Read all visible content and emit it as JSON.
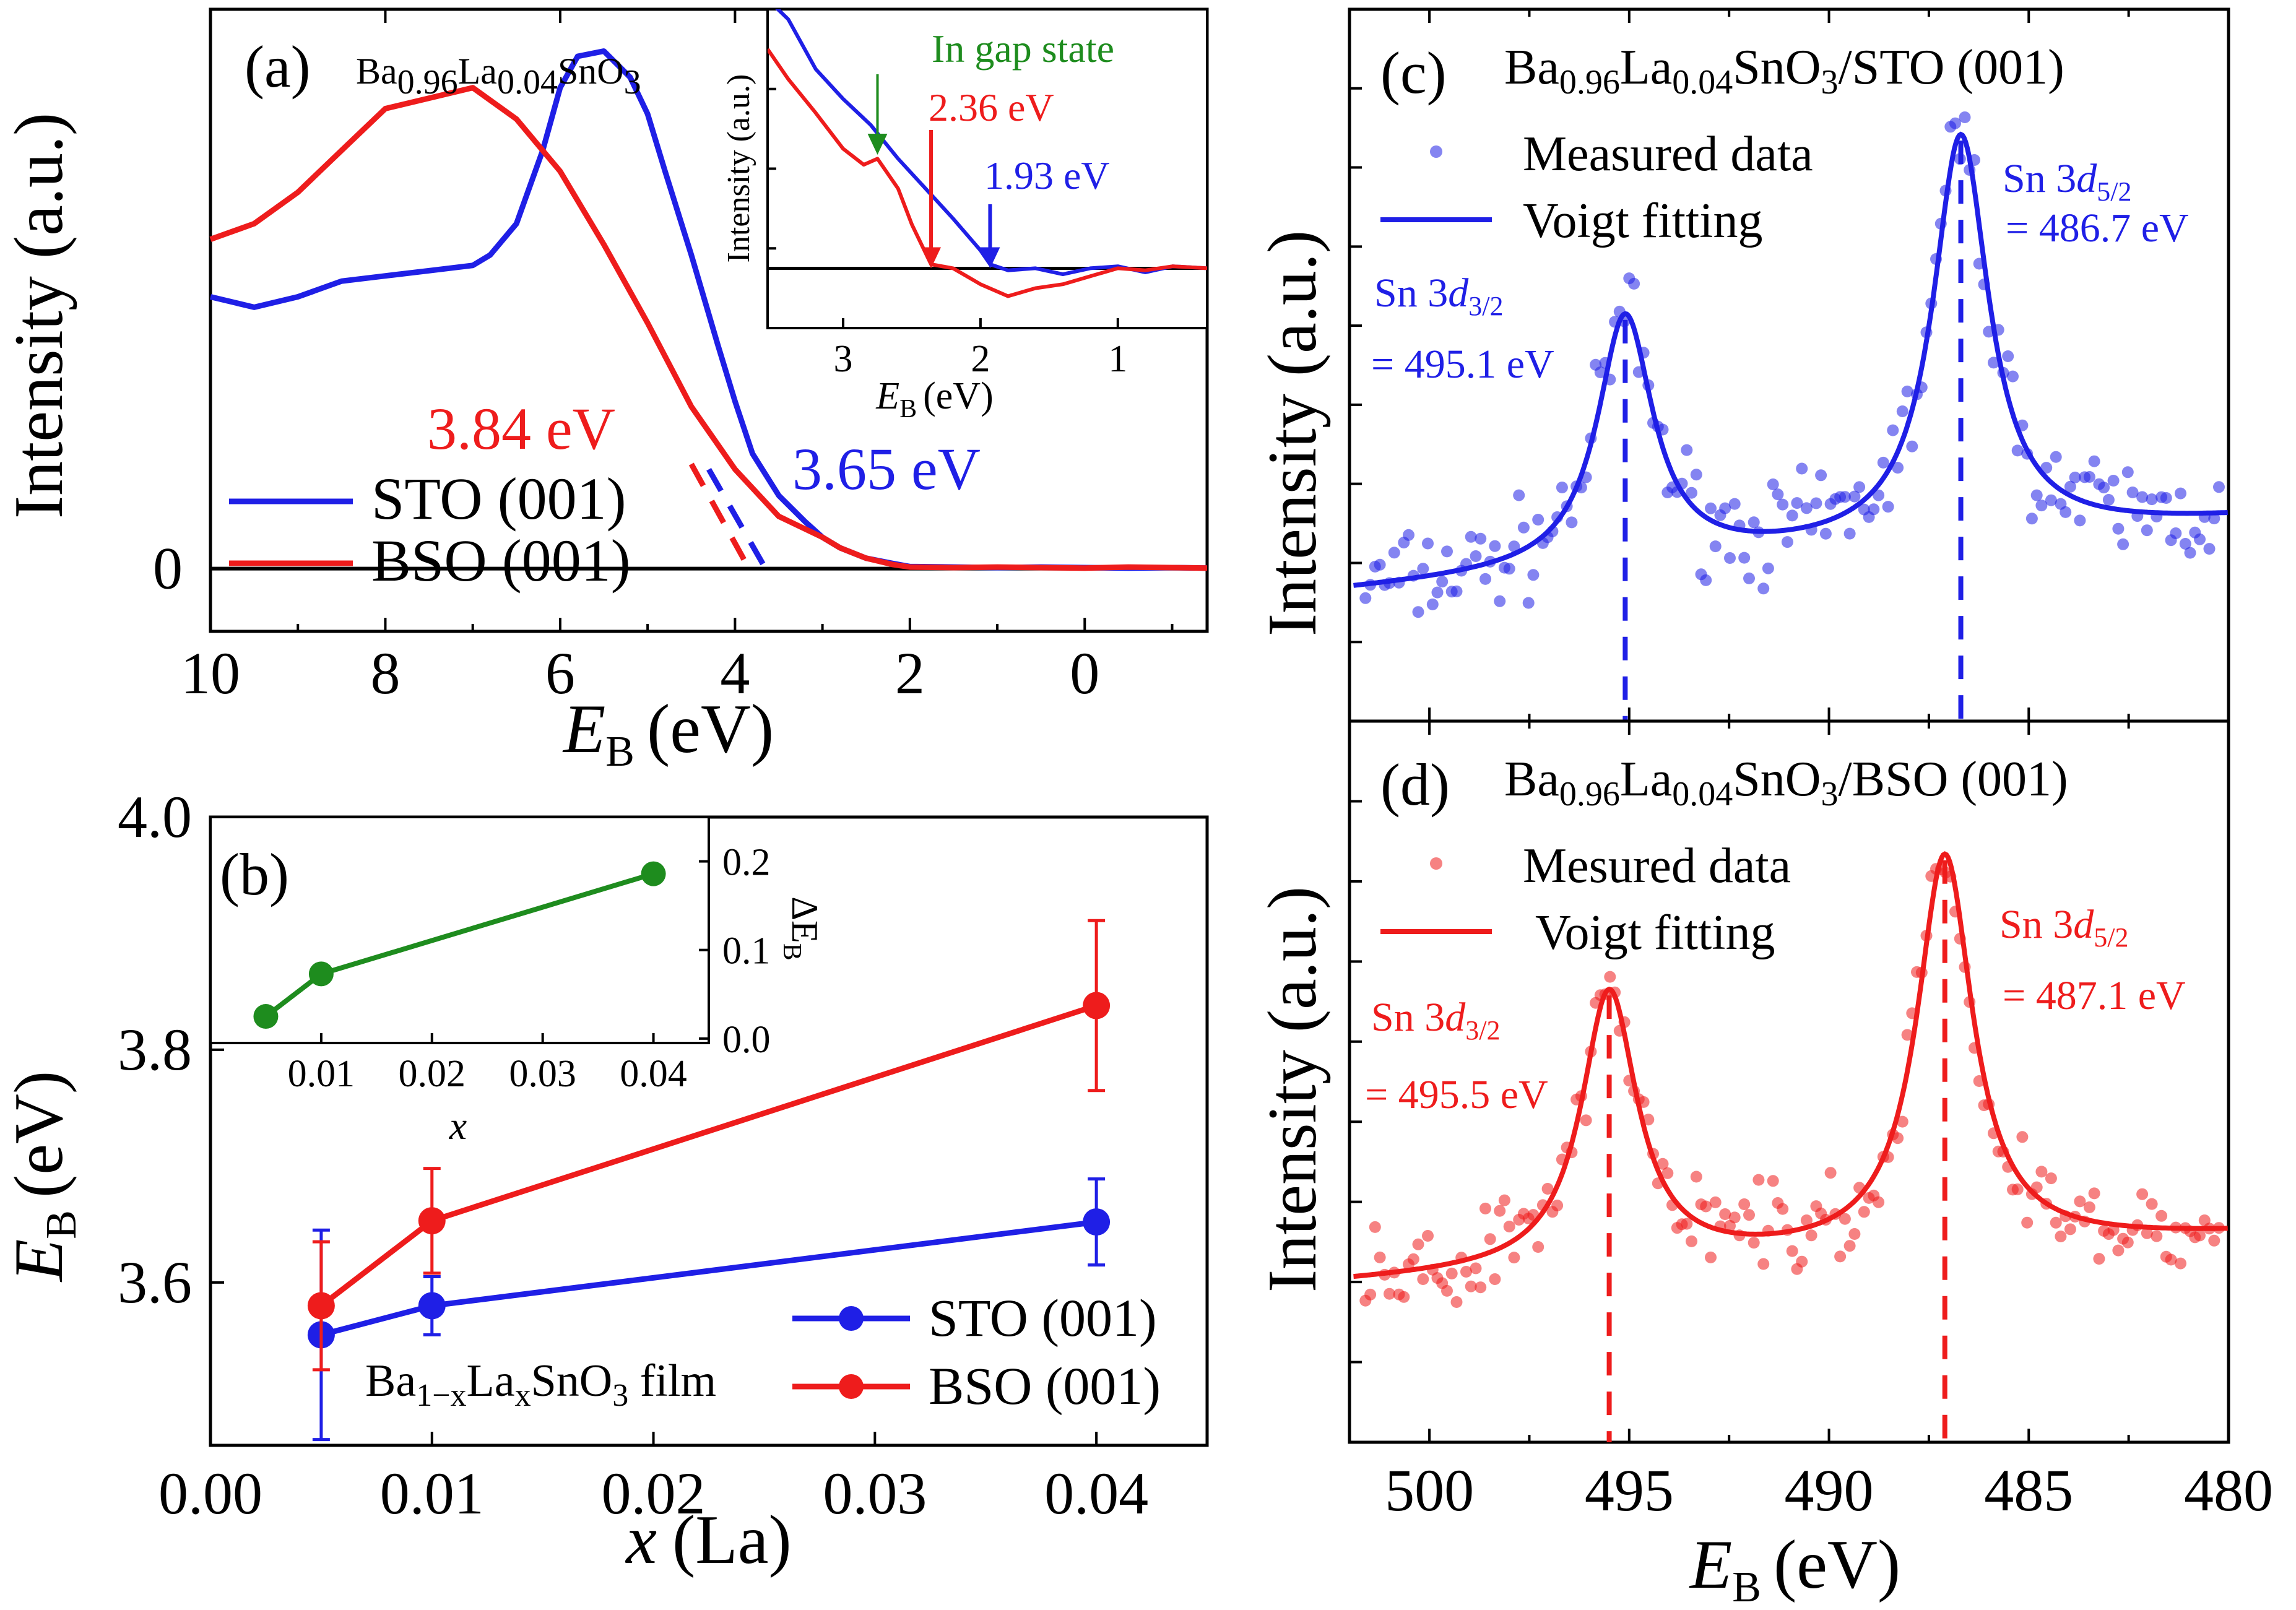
{
  "chart_data": [
    {
      "id": "a",
      "type": "line",
      "panel_label": "(a)",
      "title": "Ba0.96La0.04SnO3",
      "formula": [
        {
          "t": "Ba",
          "s": "n"
        },
        {
          "t": "0.96",
          "s": "sub"
        },
        {
          "t": "La",
          "s": "n"
        },
        {
          "t": "0.04",
          "s": "sub"
        },
        {
          "t": "SnO",
          "s": "n"
        },
        {
          "t": "3",
          "s": "sub"
        }
      ],
      "xlabel": "E",
      "xlabel_sub": "B",
      "xlabel_unit": "(eV)",
      "ylabel": "Intensity (a.u.)",
      "xlim": [
        10,
        -1.4
      ],
      "ylim": [
        -0.12,
        1.07
      ],
      "xticks": [
        10,
        8,
        6,
        4,
        2,
        0
      ],
      "xtick_labels": [
        "10",
        "8",
        "6",
        "4",
        "2",
        "0"
      ],
      "yticks": [
        0
      ],
      "ytick_labels": [
        "0"
      ],
      "legend": [
        "STO (001)",
        "BSO (001)"
      ],
      "series": [
        {
          "name": "STO (001)",
          "color": "#1f1fe6",
          "x": [
            10,
            9.5,
            9,
            8.5,
            8,
            7.5,
            7,
            6.8,
            6.5,
            6.2,
            6,
            5.8,
            5.5,
            5.2,
            5,
            4.8,
            4.5,
            4.2,
            4,
            3.8,
            3.5,
            3.2,
            3,
            2.8,
            2.5,
            2.2,
            2,
            1.5,
            1,
            0.5,
            0,
            -0.5,
            -1,
            -1.4
          ],
          "y": [
            0.52,
            0.5,
            0.52,
            0.55,
            0.56,
            0.57,
            0.58,
            0.6,
            0.66,
            0.8,
            0.92,
            0.98,
            0.99,
            0.94,
            0.87,
            0.76,
            0.6,
            0.43,
            0.32,
            0.22,
            0.14,
            0.09,
            0.06,
            0.04,
            0.02,
            0.01,
            0.004,
            0.003,
            0.002,
            0.003,
            0.002,
            0.001,
            0.002,
            0.001
          ]
        },
        {
          "name": "BSO (001)",
          "color": "#ee1c1c",
          "x": [
            10,
            9.5,
            9,
            8.5,
            8,
            7.5,
            7,
            6.5,
            6,
            5.5,
            5,
            4.5,
            4,
            3.5,
            3,
            2.8,
            2.5,
            2.2,
            2,
            1.5,
            1,
            0.5,
            0,
            -0.5,
            -1,
            -1.4
          ],
          "y": [
            0.63,
            0.66,
            0.72,
            0.8,
            0.88,
            0.9,
            0.92,
            0.86,
            0.76,
            0.62,
            0.47,
            0.31,
            0.19,
            0.1,
            0.06,
            0.04,
            0.02,
            0.008,
            0.003,
            0.002,
            0.003,
            0.002,
            0.001,
            0.003,
            0.002,
            0.001
          ]
        }
      ],
      "fit_lines": [
        {
          "color": "#1f1fe6",
          "x": [
            4.3,
            3.65
          ],
          "y": [
            0.19,
            0.0
          ]
        },
        {
          "color": "#ee1c1c",
          "x": [
            4.5,
            3.84
          ],
          "y": [
            0.2,
            0.0
          ]
        }
      ],
      "annotations": [
        {
          "text": "3.84 eV",
          "color": "#ee1c1c"
        },
        {
          "text": "3.65 eV",
          "color": "#1f1fe6"
        }
      ],
      "inset": {
        "type": "line",
        "xlabel": "E",
        "xlabel_sub": "B",
        "xlabel_unit": "(eV)",
        "ylabel": "Intensity (a.u.)",
        "xlim": [
          3.55,
          0.35
        ],
        "ylim": [
          -0.3,
          1.3
        ],
        "xticks": [
          3,
          2,
          1
        ],
        "xtick_labels": [
          "3",
          "2",
          "1"
        ],
        "series": [
          {
            "name": "STO (001)",
            "color": "#1f1fe6",
            "x": [
              3.55,
              3.4,
              3.2,
              3.0,
              2.8,
              2.6,
              2.4,
              2.2,
              2.0,
              1.93,
              1.8,
              1.6,
              1.4,
              1.2,
              1.0,
              0.8,
              0.6,
              0.35
            ],
            "y": [
              1.35,
              1.25,
              1.0,
              0.85,
              0.72,
              0.55,
              0.4,
              0.25,
              0.09,
              0.02,
              -0.01,
              0.0,
              -0.03,
              0.0,
              0.01,
              -0.02,
              0.01,
              0.0
            ]
          },
          {
            "name": "BSO (001)",
            "color": "#ee1c1c",
            "x": [
              3.55,
              3.4,
              3.2,
              3.0,
              2.85,
              2.75,
              2.6,
              2.5,
              2.36,
              2.2,
              2.0,
              1.8,
              1.6,
              1.4,
              1.2,
              1.0,
              0.8,
              0.6,
              0.35
            ],
            "y": [
              1.1,
              0.95,
              0.78,
              0.6,
              0.52,
              0.55,
              0.4,
              0.22,
              0.02,
              0.0,
              -0.08,
              -0.14,
              -0.1,
              -0.08,
              -0.04,
              0.0,
              -0.01,
              0.01,
              0.0
            ]
          }
        ],
        "annotations": [
          {
            "text": "In gap state",
            "color": "#1e8c1e"
          },
          {
            "text": "2.36 eV",
            "color": "#ee1c1c"
          },
          {
            "text": "1.93 eV",
            "color": "#1f1fe6"
          }
        ]
      }
    },
    {
      "id": "b",
      "type": "line",
      "panel_label": "(b)",
      "xlabel": "x",
      "xlabel_unit": "(La)",
      "ylabel": "E",
      "ylabel_sub": "B",
      "ylabel_unit": "(eV)",
      "xlim": [
        0.0,
        0.045
      ],
      "ylim": [
        3.46,
        4.0
      ],
      "xticks": [
        0.0,
        0.01,
        0.02,
        0.03,
        0.04
      ],
      "xtick_labels": [
        "0.00",
        "0.01",
        "0.02",
        "0.03",
        "0.04"
      ],
      "yticks": [
        3.6,
        3.8,
        4.0
      ],
      "ytick_labels": [
        "3.6",
        "3.8",
        "4.0"
      ],
      "legend": [
        "STO (001)",
        "BSO (001)"
      ],
      "legend_title": "Ba1−xLaxSnO3 film",
      "legend_formula": [
        {
          "t": "Ba",
          "s": "n"
        },
        {
          "t": "1−x",
          "s": "sub"
        },
        {
          "t": "La",
          "s": "n"
        },
        {
          "t": "x",
          "s": "sub"
        },
        {
          "t": "SnO",
          "s": "n"
        },
        {
          "t": "3",
          "s": "sub"
        },
        {
          "t": " film",
          "s": "n"
        }
      ],
      "series": [
        {
          "name": "STO (001)",
          "color": "#1f1fe6",
          "x": [
            0.005,
            0.01,
            0.04
          ],
          "y": [
            3.555,
            3.58,
            3.652
          ],
          "err": [
            0.09,
            0.025,
            0.037
          ]
        },
        {
          "name": "BSO (001)",
          "color": "#ee1c1c",
          "x": [
            0.005,
            0.01,
            0.04
          ],
          "y": [
            3.58,
            3.653,
            3.838
          ],
          "err": [
            0.055,
            0.045,
            0.073
          ]
        }
      ],
      "inset": {
        "type": "line",
        "xlabel": "x",
        "ylabel": "ΔE",
        "ylabel_sub": "B",
        "xlim": [
          0.0,
          0.045
        ],
        "ylim": [
          -0.005,
          0.25
        ],
        "xticks": [
          0.01,
          0.02,
          0.03,
          0.04
        ],
        "xtick_labels": [
          "0.01",
          "0.02",
          "0.03",
          "0.04"
        ],
        "yticks": [
          0.0,
          0.1,
          0.2
        ],
        "ytick_labels": [
          "0.0",
          "0.1",
          "0.2"
        ],
        "series": [
          {
            "name": "ΔE_B",
            "color": "#1e8c1e",
            "x": [
              0.005,
              0.01,
              0.04
            ],
            "y": [
              0.025,
              0.073,
              0.186
            ]
          }
        ]
      }
    },
    {
      "id": "c",
      "type": "scatter",
      "panel_label": "(c)",
      "title": "Ba0.96La0.04SnO3/STO (001)",
      "formula": [
        {
          "t": "Ba",
          "s": "n"
        },
        {
          "t": "0.96",
          "s": "sub"
        },
        {
          "t": "La",
          "s": "n"
        },
        {
          "t": "0.04",
          "s": "sub"
        },
        {
          "t": "SnO",
          "s": "n"
        },
        {
          "t": "3",
          "s": "sub"
        },
        {
          "t": "/STO (001)",
          "s": "n"
        }
      ],
      "ylabel": "Intensity (a.u.)",
      "xlim": [
        502,
        480
      ],
      "ylim": [
        -0.38,
        1.38
      ],
      "legend": [
        "Measured data",
        "Voigt fitting"
      ],
      "color": "#1f1fe6",
      "peaks": [
        {
          "name": "Sn 3d3/2",
          "center": 495.1,
          "height": 0.62,
          "width": 0.85
        },
        {
          "name": "Sn 3d5/2",
          "center": 486.7,
          "height": 1.0,
          "width": 0.85
        }
      ],
      "baseline": [
        0.03,
        -0.008
      ],
      "noise": 0.12,
      "seed": 7,
      "peak_labels": [
        {
          "main": "Sn 3",
          "ital": "d",
          "sub": "3/2",
          "value": "= 495.1 eV"
        },
        {
          "main": "Sn 3",
          "ital": "d",
          "sub": "5/2",
          "value": "= 486.7 eV"
        }
      ]
    },
    {
      "id": "d",
      "type": "scatter",
      "panel_label": "(d)",
      "title": "Ba0.96La0.04SnO3/BSO (001)",
      "formula": [
        {
          "t": "Ba",
          "s": "n"
        },
        {
          "t": "0.96",
          "s": "sub"
        },
        {
          "t": "La",
          "s": "n"
        },
        {
          "t": "0.04",
          "s": "sub"
        },
        {
          "t": "SnO",
          "s": "n"
        },
        {
          "t": "3",
          "s": "sub"
        },
        {
          "t": "/BSO (001)",
          "s": "n"
        }
      ],
      "xlabel": "E",
      "xlabel_sub": "B",
      "xlabel_unit": "(eV)",
      "ylabel": "Intensity (a.u.)",
      "xlim": [
        502,
        480
      ],
      "ylim": [
        -0.4,
        1.25
      ],
      "xticks": [
        500,
        495,
        490,
        485,
        480
      ],
      "xtick_labels": [
        "500",
        "495",
        "490",
        "485",
        "480"
      ],
      "legend": [
        "Mesured data",
        "Voigt fitting"
      ],
      "color": "#ee1c1c",
      "peaks": [
        {
          "name": "Sn 3d3/2",
          "center": 495.5,
          "height": 0.63,
          "width": 0.85
        },
        {
          "name": "Sn 3d5/2",
          "center": 487.1,
          "height": 0.9,
          "width": 0.85
        }
      ],
      "baseline": [
        0.02,
        -0.005
      ],
      "noise": 0.09,
      "seed": 19,
      "peak_labels": [
        {
          "main": "Sn 3",
          "ital": "d",
          "sub": "3/2",
          "value": "= 495.5 eV"
        },
        {
          "main": "Sn 3",
          "ital": "d",
          "sub": "5/2",
          "value": "= 487.1 eV"
        }
      ]
    }
  ]
}
